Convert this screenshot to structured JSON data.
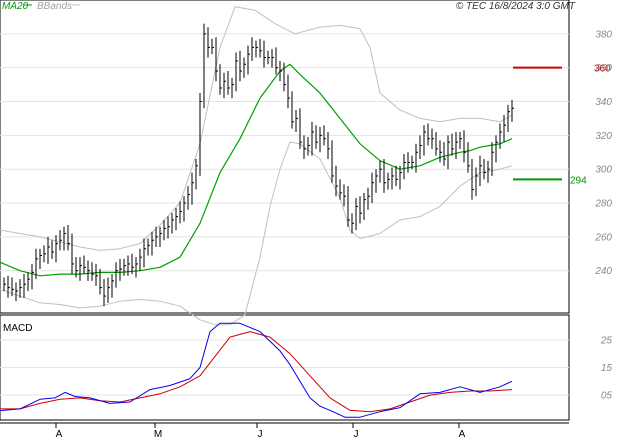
{
  "header": {
    "legend_ma": "MA20",
    "legend_bbands": "BBands",
    "copyright": "© TEC 16/8/2024 3:0 GMT"
  },
  "colors": {
    "price": "#000000",
    "ma": "#00a000",
    "bbands": "#c0c0c0",
    "resistance": "#cc0000",
    "support": "#009900",
    "macd": "#0000ee",
    "signal": "#cc0000",
    "grid": "#e3e3e3",
    "axis": "#000000",
    "tick_text": "#888888"
  },
  "chart_data": [
    {
      "type": "line",
      "panel": "price",
      "ylim": [
        215,
        400
      ],
      "yticks": [
        "240",
        "260",
        "280",
        "300",
        "320",
        "340",
        "360",
        "380"
      ],
      "xlim": [
        0,
        565
      ],
      "x_ticks": [
        {
          "label": "A",
          "x": 59
        },
        {
          "label": "M",
          "x": 158
        },
        {
          "label": "J",
          "x": 260
        },
        {
          "label": "J",
          "x": 356
        },
        {
          "label": "A",
          "x": 462
        }
      ],
      "levels": [
        {
          "name": "resistance",
          "value": 360,
          "label": "360",
          "color": "#cc0000"
        },
        {
          "name": "support",
          "value": 294,
          "label": "294",
          "color": "#009900"
        }
      ],
      "series": [
        {
          "name": "MA20",
          "points": [
            [
              0,
              245
            ],
            [
              20,
              240
            ],
            [
              40,
              237
            ],
            [
              60,
              238
            ],
            [
              80,
              238
            ],
            [
              100,
              239
            ],
            [
              120,
              239
            ],
            [
              140,
              240
            ],
            [
              160,
              242
            ],
            [
              180,
              248
            ],
            [
              200,
              268
            ],
            [
              220,
              298
            ],
            [
              240,
              318
            ],
            [
              260,
              342
            ],
            [
              280,
              358
            ],
            [
              290,
              362
            ],
            [
              300,
              356
            ],
            [
              320,
              345
            ],
            [
              340,
              330
            ],
            [
              360,
              315
            ],
            [
              380,
              305
            ],
            [
              400,
              300
            ],
            [
              420,
              302
            ],
            [
              440,
              307
            ],
            [
              460,
              310
            ],
            [
              470,
              311
            ],
            [
              480,
              313
            ],
            [
              490,
              314
            ],
            [
              500,
              315
            ],
            [
              512,
              318
            ]
          ]
        },
        {
          "name": "BBands upper",
          "points": [
            [
              0,
              264
            ],
            [
              20,
              262
            ],
            [
              40,
              260
            ],
            [
              60,
              257
            ],
            [
              80,
              254
            ],
            [
              100,
              252
            ],
            [
              120,
              253
            ],
            [
              140,
              256
            ],
            [
              160,
              267
            ],
            [
              180,
              280
            ],
            [
              200,
              315
            ],
            [
              220,
              372
            ],
            [
              235,
              396
            ],
            [
              255,
              394
            ],
            [
              275,
              386
            ],
            [
              295,
              380
            ],
            [
              320,
              384
            ],
            [
              340,
              385
            ],
            [
              360,
              383
            ],
            [
              370,
              372
            ],
            [
              380,
              345
            ],
            [
              400,
              335
            ],
            [
              420,
              330
            ],
            [
              440,
              328
            ],
            [
              460,
              330
            ],
            [
              480,
              330
            ],
            [
              500,
              328
            ],
            [
              512,
              332
            ]
          ]
        },
        {
          "name": "BBands lower",
          "points": [
            [
              0,
              229
            ],
            [
              20,
              225
            ],
            [
              40,
              221
            ],
            [
              60,
              220
            ],
            [
              80,
              218
            ],
            [
              100,
              219
            ],
            [
              120,
              222
            ],
            [
              140,
              223
            ],
            [
              160,
              222
            ],
            [
              180,
              219
            ],
            [
              200,
              211
            ],
            [
              215,
              208
            ],
            [
              230,
              208
            ],
            [
              245,
              214
            ],
            [
              260,
              248
            ],
            [
              270,
              278
            ],
            [
              280,
              300
            ],
            [
              290,
              316
            ],
            [
              300,
              315
            ],
            [
              320,
              306
            ],
            [
              340,
              283
            ],
            [
              350,
              264
            ],
            [
              360,
              259
            ],
            [
              380,
              262
            ],
            [
              400,
              270
            ],
            [
              420,
              272
            ],
            [
              440,
              278
            ],
            [
              460,
              290
            ],
            [
              480,
              298
            ],
            [
              500,
              300
            ],
            [
              512,
              302
            ]
          ]
        }
      ],
      "price_points": [
        [
          4,
          232
        ],
        [
          8,
          230
        ],
        [
          12,
          229
        ],
        [
          16,
          228
        ],
        [
          20,
          230
        ],
        [
          24,
          232
        ],
        [
          28,
          235
        ],
        [
          32,
          239
        ],
        [
          36,
          247
        ],
        [
          40,
          249
        ],
        [
          44,
          250
        ],
        [
          48,
          254
        ],
        [
          52,
          251
        ],
        [
          56,
          256
        ],
        [
          60,
          258
        ],
        [
          64,
          262
        ],
        [
          68,
          256
        ],
        [
          72,
          244
        ],
        [
          76,
          240
        ],
        [
          80,
          243
        ],
        [
          84,
          242
        ],
        [
          88,
          240
        ],
        [
          92,
          238
        ],
        [
          96,
          237
        ],
        [
          100,
          230
        ],
        [
          104,
          225
        ],
        [
          108,
          230
        ],
        [
          112,
          234
        ],
        [
          116,
          240
        ],
        [
          120,
          241
        ],
        [
          124,
          243
        ],
        [
          128,
          244
        ],
        [
          132,
          242
        ],
        [
          136,
          244
        ],
        [
          140,
          248
        ],
        [
          144,
          253
        ],
        [
          148,
          255
        ],
        [
          152,
          258
        ],
        [
          156,
          260
        ],
        [
          160,
          262
        ],
        [
          164,
          265
        ],
        [
          168,
          266
        ],
        [
          172,
          270
        ],
        [
          176,
          272
        ],
        [
          180,
          275
        ],
        [
          184,
          280
        ],
        [
          188,
          285
        ],
        [
          192,
          292
        ],
        [
          196,
          302
        ],
        [
          200,
          340
        ],
        [
          204,
          380
        ],
        [
          208,
          372
        ],
        [
          212,
          372
        ],
        [
          216,
          358
        ],
        [
          220,
          348
        ],
        [
          224,
          352
        ],
        [
          228,
          348
        ],
        [
          232,
          350
        ],
        [
          236,
          364
        ],
        [
          240,
          358
        ],
        [
          244,
          362
        ],
        [
          248,
          368
        ],
        [
          252,
          372
        ],
        [
          256,
          372
        ],
        [
          260,
          370
        ],
        [
          264,
          366
        ],
        [
          268,
          366
        ],
        [
          272,
          366
        ],
        [
          276,
          360
        ],
        [
          280,
          358
        ],
        [
          284,
          350
        ],
        [
          288,
          342
        ],
        [
          292,
          328
        ],
        [
          296,
          330
        ],
        [
          300,
          316
        ],
        [
          304,
          312
        ],
        [
          308,
          314
        ],
        [
          312,
          322
        ],
        [
          316,
          316
        ],
        [
          320,
          320
        ],
        [
          324,
          318
        ],
        [
          328,
          312
        ],
        [
          332,
          296
        ],
        [
          336,
          290
        ],
        [
          340,
          286
        ],
        [
          344,
          284
        ],
        [
          348,
          270
        ],
        [
          352,
          268
        ],
        [
          356,
          278
        ],
        [
          360,
          274
        ],
        [
          364,
          282
        ],
        [
          368,
          284
        ],
        [
          372,
          292
        ],
        [
          376,
          296
        ],
        [
          380,
          300
        ],
        [
          384,
          292
        ],
        [
          388,
          294
        ],
        [
          392,
          296
        ],
        [
          396,
          294
        ],
        [
          400,
          298
        ],
        [
          404,
          304
        ],
        [
          408,
          304
        ],
        [
          412,
          304
        ],
        [
          416,
          310
        ],
        [
          420,
          314
        ],
        [
          424,
          322
        ],
        [
          428,
          318
        ],
        [
          432,
          318
        ],
        [
          436,
          312
        ],
        [
          440,
          310
        ],
        [
          444,
          306
        ],
        [
          448,
          316
        ],
        [
          452,
          312
        ],
        [
          456,
          316
        ],
        [
          460,
          318
        ],
        [
          464,
          310
        ],
        [
          468,
          302
        ],
        [
          472,
          288
        ],
        [
          476,
          296
        ],
        [
          480,
          302
        ],
        [
          484,
          298
        ],
        [
          488,
          300
        ],
        [
          492,
          310
        ],
        [
          496,
          316
        ],
        [
          500,
          322
        ],
        [
          504,
          326
        ],
        [
          508,
          334
        ],
        [
          512,
          336
        ]
      ]
    },
    {
      "type": "line",
      "panel": "macd",
      "title": "MACD",
      "ylim": [
        -0.4,
        3.4
      ],
      "yticks": [
        "05",
        "15",
        "25"
      ],
      "series": [
        {
          "name": "MACD",
          "points": [
            [
              0,
              -0.06
            ],
            [
              20,
              0.0
            ],
            [
              40,
              0.35
            ],
            [
              55,
              0.4
            ],
            [
              65,
              0.6
            ],
            [
              75,
              0.45
            ],
            [
              90,
              0.4
            ],
            [
              110,
              0.2
            ],
            [
              130,
              0.25
            ],
            [
              150,
              0.7
            ],
            [
              170,
              0.85
            ],
            [
              190,
              1.1
            ],
            [
              200,
              1.5
            ],
            [
              210,
              2.8
            ],
            [
              220,
              3.1
            ],
            [
              240,
              3.1
            ],
            [
              260,
              2.8
            ],
            [
              280,
              2.1
            ],
            [
              290,
              1.6
            ],
            [
              300,
              1.0
            ],
            [
              310,
              0.4
            ],
            [
              320,
              0.1
            ],
            [
              330,
              -0.05
            ],
            [
              345,
              -0.3
            ],
            [
              360,
              -0.3
            ],
            [
              380,
              -0.1
            ],
            [
              400,
              0.05
            ],
            [
              420,
              0.55
            ],
            [
              440,
              0.6
            ],
            [
              460,
              0.8
            ],
            [
              480,
              0.6
            ],
            [
              500,
              0.8
            ],
            [
              512,
              1.0
            ]
          ]
        },
        {
          "name": "Signal",
          "points": [
            [
              0,
              0.0
            ],
            [
              20,
              0.0
            ],
            [
              40,
              0.2
            ],
            [
              60,
              0.35
            ],
            [
              80,
              0.4
            ],
            [
              100,
              0.3
            ],
            [
              120,
              0.25
            ],
            [
              140,
              0.4
            ],
            [
              160,
              0.55
            ],
            [
              180,
              0.8
            ],
            [
              200,
              1.2
            ],
            [
              215,
              1.9
            ],
            [
              230,
              2.6
            ],
            [
              250,
              2.8
            ],
            [
              270,
              2.6
            ],
            [
              290,
              2.0
            ],
            [
              310,
              1.2
            ],
            [
              330,
              0.4
            ],
            [
              350,
              -0.05
            ],
            [
              370,
              -0.1
            ],
            [
              390,
              0.0
            ],
            [
              410,
              0.25
            ],
            [
              430,
              0.5
            ],
            [
              450,
              0.6
            ],
            [
              470,
              0.65
            ],
            [
              490,
              0.65
            ],
            [
              512,
              0.7
            ]
          ]
        }
      ]
    }
  ]
}
